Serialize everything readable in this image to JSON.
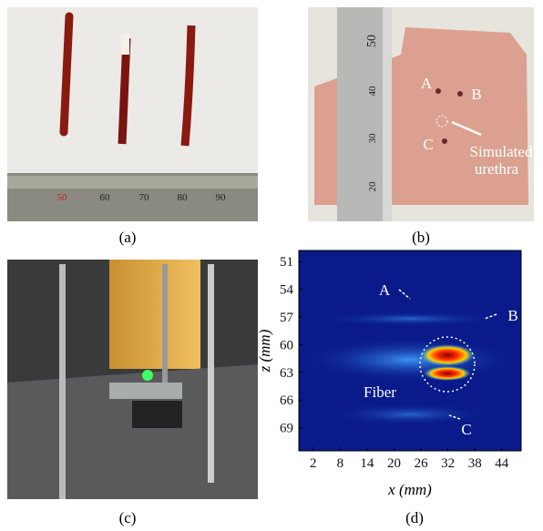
{
  "panels": [
    {
      "label": "(a)",
      "ruler_labels": [
        "50",
        "60",
        "70",
        "80",
        "90"
      ]
    },
    {
      "label": "(b)",
      "ruler_labels": [
        "50",
        "40",
        "30",
        "20"
      ],
      "annotations": [
        "A",
        "B",
        "C",
        "Simulated",
        "urethra"
      ]
    },
    {
      "label": "(c)"
    },
    {
      "label": "(d)",
      "annotations": [
        "A",
        "B",
        "Fiber",
        "C"
      ],
      "plot": {
        "xlabel": "x (mm)",
        "ylabel": "z (mm)",
        "xlim": [
          -1.2,
          48.3
        ],
        "ylim": [
          49.8,
          71.5
        ],
        "xticks": [
          2,
          8,
          14,
          20,
          26,
          32,
          38,
          44
        ],
        "yticks": [
          51,
          54,
          57,
          60,
          63,
          66,
          69
        ]
      }
    }
  ]
}
